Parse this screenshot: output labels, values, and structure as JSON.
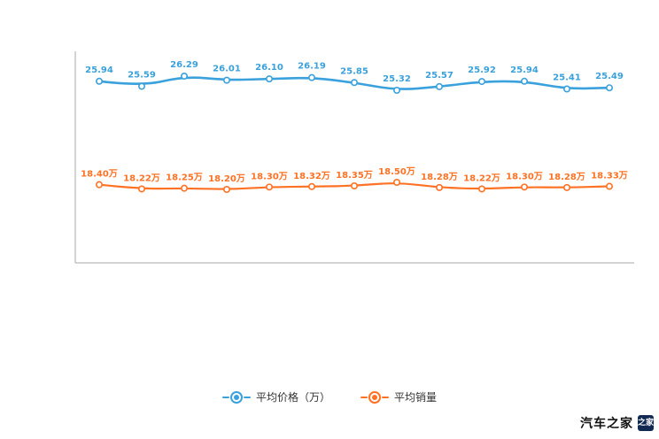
{
  "watermark": {
    "brand": "汽车之家"
  },
  "chart_data": {
    "type": "line",
    "title": "",
    "xlabel": "",
    "ylabel": "",
    "grid": false,
    "legend_position": "bottom",
    "series": [
      {
        "name": "平均价格（万）",
        "color": "#3aa1dc",
        "values": [
          25.94,
          25.59,
          26.29,
          26.01,
          26.1,
          26.19,
          25.85,
          25.32,
          25.57,
          25.92,
          25.94,
          25.41,
          25.49
        ],
        "labels": [
          "25.94",
          "25.59",
          "26.29",
          "26.01",
          "26.10",
          "26.19",
          "25.85",
          "25.32",
          "25.57",
          "25.92",
          "25.94",
          "25.41",
          "25.49"
        ]
      },
      {
        "name": "平均销量",
        "color": "#ff7123",
        "values": [
          18.4,
          18.22,
          18.25,
          18.2,
          18.3,
          18.32,
          18.35,
          18.5,
          18.28,
          18.22,
          18.3,
          18.28,
          18.33
        ],
        "labels": [
          "18.40万",
          "18.22万",
          "18.25万",
          "18.20万",
          "18.30万",
          "18.32万",
          "18.35万",
          "18.50万",
          "18.28万",
          "18.22万",
          "18.30万",
          "18.28万",
          "18.33万"
        ]
      }
    ]
  }
}
